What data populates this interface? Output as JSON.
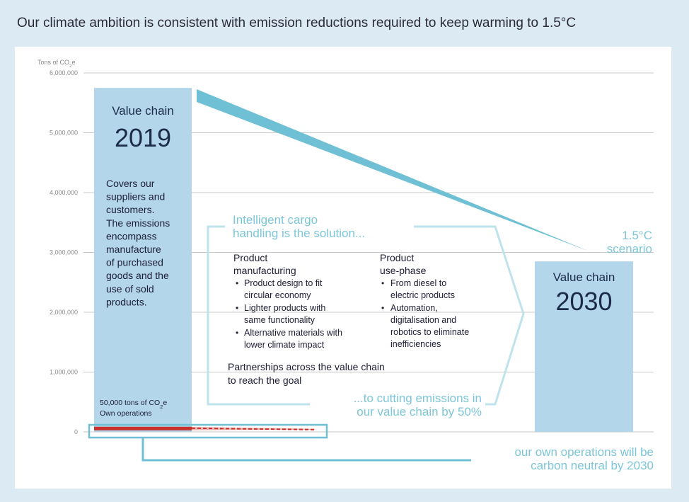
{
  "title": "Our climate ambition is consistent with emission reductions required to keep warming to 1.5°C",
  "colors": {
    "background": "#dceaf4",
    "bar": "#b3d6ea",
    "accent": "#6fc0d4",
    "accent_text": "#7cc6d8",
    "own_ops": "#c8312b",
    "grid": "#c9c9c9",
    "text_dark": "#1d2b4a"
  },
  "chart_data": {
    "type": "bar",
    "ylabel_prefix": "Tons of CO",
    "ylabel_sub": "2",
    "ylabel_suffix": "e",
    "ylim": [
      0,
      6000000
    ],
    "yticks": [
      0,
      1000000,
      2000000,
      3000000,
      4000000,
      5000000,
      6000000
    ],
    "ytick_labels": [
      "0",
      "1,000,000",
      "2,000,000",
      "3,000,000",
      "4,000,000",
      "5,000,000",
      "6,000,000"
    ],
    "grid": true,
    "categories": [
      "2019",
      "2030"
    ],
    "bars": [
      {
        "label_top": "Value chain",
        "label_year": "2019",
        "value": 5750000
      },
      {
        "label_top": "Value chain",
        "label_year": "2030",
        "value": 2850000
      }
    ],
    "own_operations": {
      "value": 50000,
      "label_line1_prefix": "50,000 tons of CO",
      "label_line1_sub": "2",
      "label_line1_suffix": "e",
      "label_line2": "Own operations"
    },
    "scenario_label": [
      "1.5°C",
      "scenario"
    ],
    "bar_2019_description": [
      "Covers our",
      "suppliers and",
      "customers.",
      "The emissions",
      "encompass",
      "manufacture",
      "of purchased",
      "goods and the",
      "use of sold",
      "products."
    ],
    "solution": {
      "heading": [
        "Intelligent cargo",
        "handling is the solution..."
      ],
      "col1_heading": [
        "Product",
        "manufacturing"
      ],
      "col1_bullets": [
        [
          "Product design to fit",
          "circular economy"
        ],
        [
          "Lighter products with",
          "same functionality"
        ],
        [
          "Alternative materials with",
          "lower climate impact"
        ]
      ],
      "col2_heading": [
        "Product",
        "use-phase"
      ],
      "col2_bullets": [
        [
          "From diesel to",
          "electric products"
        ],
        [
          "Automation,",
          "digitalisation and",
          "robotics to eliminate",
          "inefficiencies"
        ]
      ],
      "partnerships": [
        "Partnerships across the value chain",
        "to reach the goal"
      ],
      "cutting": [
        "...to cutting emissions in",
        "our value chain by 50%"
      ]
    },
    "own_ops_goal": [
      "our own operations will be",
      "carbon neutral by 2030"
    ]
  }
}
